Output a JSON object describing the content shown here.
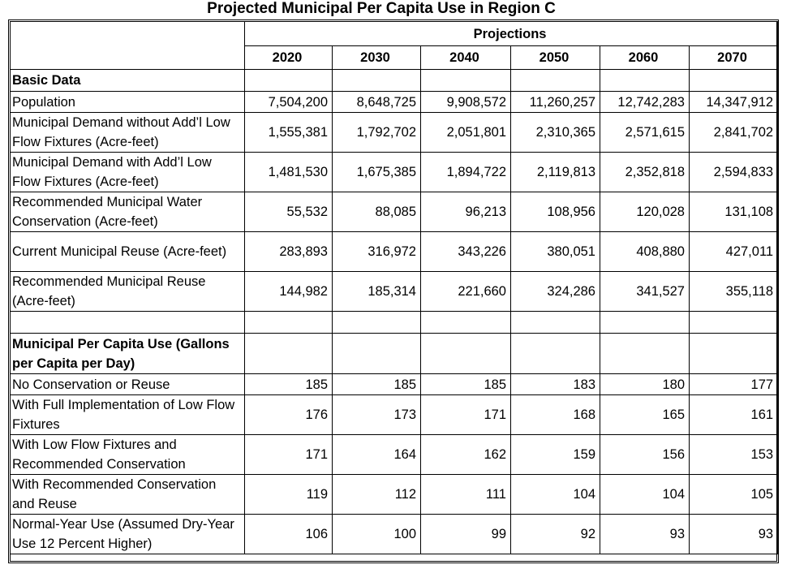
{
  "title": "Projected Municipal Per Capita Use in Region C",
  "header": {
    "projections_label": "Projections",
    "years": [
      "2020",
      "2030",
      "2040",
      "2050",
      "2060",
      "2070"
    ]
  },
  "basic_data": {
    "section_label": "Basic Data",
    "rows": [
      {
        "label": "Population",
        "values": [
          "7,504,200",
          "8,648,725",
          "9,908,572",
          "11,260,257",
          "12,742,283",
          "14,347,912"
        ]
      },
      {
        "label": "Municipal Demand without Add’l Low Flow Fixtures (Acre-feet)",
        "values": [
          "1,555,381",
          "1,792,702",
          "2,051,801",
          "2,310,365",
          "2,571,615",
          "2,841,702"
        ]
      },
      {
        "label": "Municipal Demand with Add’l Low Flow Fixtures (Acre-feet)",
        "values": [
          "1,481,530",
          "1,675,385",
          "1,894,722",
          "2,119,813",
          "2,352,818",
          "2,594,833"
        ]
      },
      {
        "label": "Recommended Municipal Water Conservation (Acre-feet)",
        "values": [
          "55,532",
          "88,085",
          "96,213",
          "108,956",
          "120,028",
          "131,108"
        ]
      },
      {
        "label": "Current Municipal Reuse (Acre-feet)",
        "values": [
          "283,893",
          "316,972",
          "343,226",
          "380,051",
          "408,880",
          "427,011"
        ]
      },
      {
        "label": "Recommended Municipal Reuse (Acre-feet)",
        "values": [
          "144,982",
          "185,314",
          "221,660",
          "324,286",
          "341,527",
          "355,118"
        ]
      }
    ]
  },
  "per_capita": {
    "section_label": "Municipal Per Capita Use (Gallons per Capita per Day)",
    "rows": [
      {
        "label": "No Conservation or Reuse",
        "values": [
          "185",
          "185",
          "185",
          "183",
          "180",
          "177"
        ]
      },
      {
        "label": "With Full Implementation of Low Flow Fixtures",
        "values": [
          "176",
          "173",
          "171",
          "168",
          "165",
          "161"
        ]
      },
      {
        "label": "With Low Flow Fixtures and Recommended Conservation",
        "values": [
          "171",
          "164",
          "162",
          "159",
          "156",
          "153"
        ]
      },
      {
        "label": "With Recommended Conservation and Reuse",
        "values": [
          "119",
          "112",
          "111",
          "104",
          "104",
          "105"
        ]
      },
      {
        "label": "Normal-Year Use (Assumed Dry-Year Use 12 Percent Higher)",
        "values": [
          "106",
          "100",
          "99",
          "92",
          "93",
          "93"
        ]
      }
    ]
  }
}
